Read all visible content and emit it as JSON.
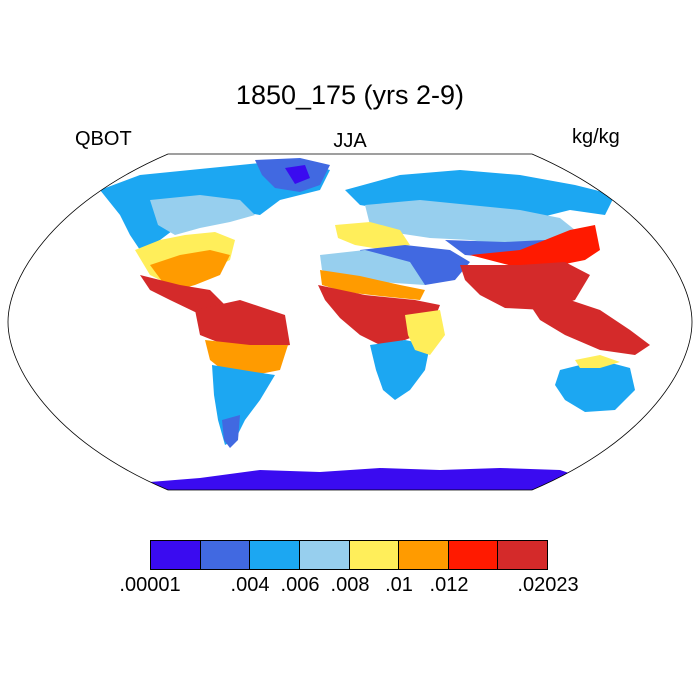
{
  "header": {
    "title": "1850_175 (yrs 2-9)",
    "left": "QBOT",
    "center": "JJA",
    "right": "kg/kg"
  },
  "colorbar": {
    "colors": [
      "#3a0bf0",
      "#4169e1",
      "#1ca7f2",
      "#97cfee",
      "#ffee5a",
      "#ff9b00",
      "#ff1a00",
      "#d42a2a"
    ],
    "labels": [
      ".00001",
      ".004",
      ".006",
      ".008",
      ".01",
      ".012",
      ".02023"
    ]
  },
  "ocean_color": "#ffffff",
  "coast_color": "#000000"
}
